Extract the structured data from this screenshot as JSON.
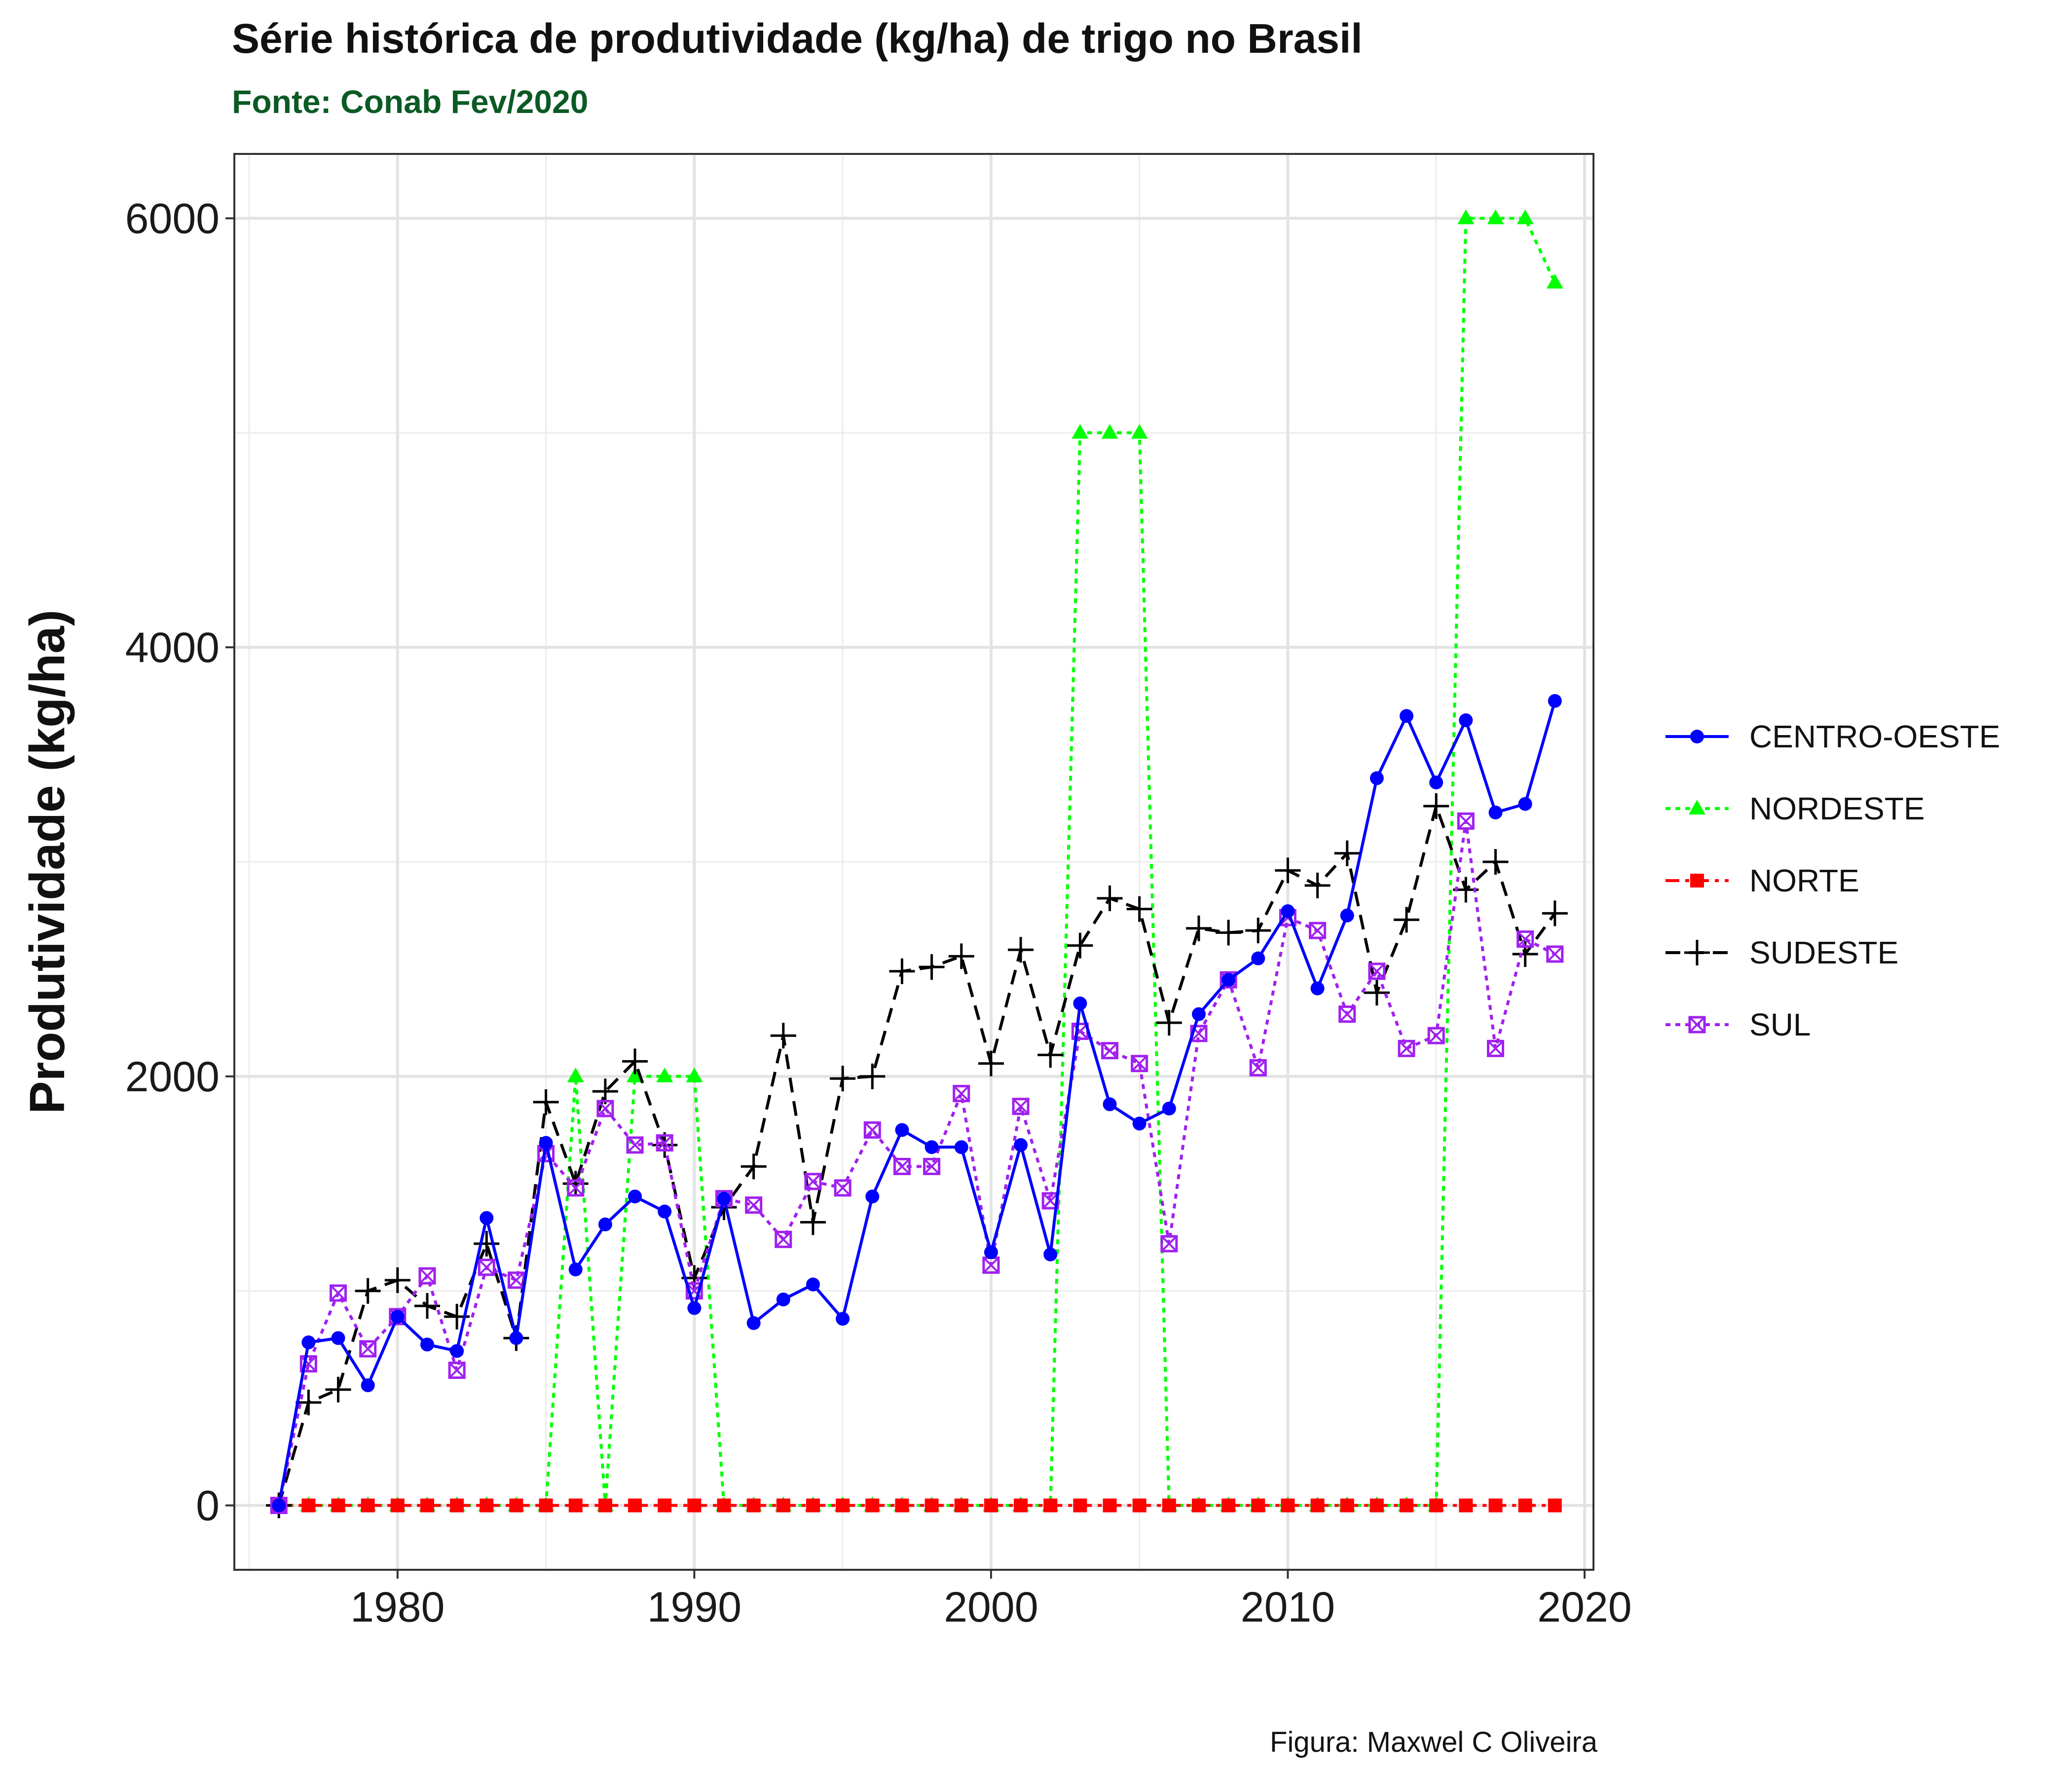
{
  "title": "Série histórica de produtividade (kg/ha) de trigo no Brasil",
  "subtitle": "Fonte: Conab Fev/2020",
  "subtitle_color": "#0b5a24",
  "caption": "Figura: Maxwel C Oliveira",
  "chart_data": {
    "type": "line",
    "title": "Série histórica de produtividade (kg/ha) de trigo no Brasil",
    "subtitle": "Fonte: Conab Fev/2020",
    "xlabel": "",
    "ylabel": "Produtividade (kg/ha)",
    "xlim": [
      1974.5,
      2020.3
    ],
    "ylim": [
      -300,
      6300
    ],
    "x_ticks": [
      1980,
      1990,
      2000,
      2010,
      2020
    ],
    "x_tick_labels": [
      "1980",
      "1990",
      "2000",
      "2010",
      "2020"
    ],
    "y_ticks": [
      0,
      2000,
      4000,
      6000
    ],
    "y_tick_labels": [
      "0",
      "2000",
      "4000",
      "6000"
    ],
    "grid": true,
    "legend_position": "right",
    "x": [
      1976,
      1977,
      1978,
      1979,
      1980,
      1981,
      1982,
      1983,
      1984,
      1985,
      1986,
      1987,
      1988,
      1989,
      1990,
      1991,
      1992,
      1993,
      1994,
      1995,
      1996,
      1997,
      1998,
      1999,
      2000,
      2001,
      2002,
      2003,
      2004,
      2005,
      2006,
      2007,
      2008,
      2009,
      2010,
      2011,
      2012,
      2013,
      2014,
      2015,
      2016,
      2017,
      2018,
      2019
    ],
    "series": [
      {
        "name": "CENTRO-OESTE",
        "color": "#0000ff",
        "dash": "solid",
        "marker": "circle",
        "values": [
          0,
          760,
          780,
          560,
          880,
          750,
          720,
          1340,
          780,
          1690,
          1100,
          1310,
          1440,
          1370,
          920,
          1430,
          850,
          960,
          1030,
          870,
          1440,
          1750,
          1670,
          1670,
          1180,
          1680,
          1170,
          2340,
          1870,
          1780,
          1850,
          2290,
          2450,
          2550,
          2770,
          2410,
          2750,
          3390,
          3680,
          3370,
          3660,
          3230,
          3270,
          3750
        ]
      },
      {
        "name": "NORDESTE",
        "color": "#00ff00",
        "dash": "dotted",
        "marker": "triangle",
        "values": [
          0,
          0,
          0,
          0,
          0,
          0,
          0,
          0,
          0,
          0,
          2000,
          0,
          2000,
          2000,
          2000,
          0,
          0,
          0,
          0,
          0,
          0,
          0,
          0,
          0,
          0,
          0,
          0,
          5000,
          5000,
          5000,
          0,
          0,
          0,
          0,
          0,
          0,
          0,
          0,
          0,
          0,
          6000,
          6000,
          6000,
          5700
        ]
      },
      {
        "name": "NORTE",
        "color": "#ff0000",
        "dash": "dashdot",
        "marker": "square",
        "values": [
          0,
          0,
          0,
          0,
          0,
          0,
          0,
          0,
          0,
          0,
          0,
          0,
          0,
          0,
          0,
          0,
          0,
          0,
          0,
          0,
          0,
          0,
          0,
          0,
          0,
          0,
          0,
          0,
          0,
          0,
          0,
          0,
          0,
          0,
          0,
          0,
          0,
          0,
          0,
          0,
          0,
          0,
          0,
          0
        ]
      },
      {
        "name": "SUDESTE",
        "color": "#000000",
        "dash": "dashed",
        "marker": "plus",
        "values": [
          0,
          480,
          540,
          1000,
          1050,
          930,
          880,
          1220,
          780,
          1880,
          1500,
          1930,
          2070,
          1680,
          1060,
          1390,
          1580,
          2190,
          1320,
          1990,
          2000,
          2490,
          2510,
          2560,
          2060,
          2590,
          2100,
          2610,
          2830,
          2780,
          2250,
          2690,
          2670,
          2680,
          2960,
          2890,
          3040,
          2390,
          2730,
          3260,
          2870,
          3000,
          2570,
          2760
        ]
      },
      {
        "name": "SUL",
        "color": "#a020f0",
        "dash": "dotted",
        "marker": "square-x",
        "values": [
          0,
          660,
          990,
          730,
          880,
          1070,
          630,
          1110,
          1050,
          1640,
          1480,
          1850,
          1680,
          1690,
          1000,
          1430,
          1400,
          1240,
          1510,
          1480,
          1750,
          1580,
          1580,
          1920,
          1120,
          1860,
          1420,
          2210,
          2120,
          2060,
          1220,
          2200,
          2450,
          2040,
          2740,
          2680,
          2290,
          2490,
          2130,
          2190,
          3190,
          2130,
          2640,
          2570
        ]
      }
    ]
  }
}
